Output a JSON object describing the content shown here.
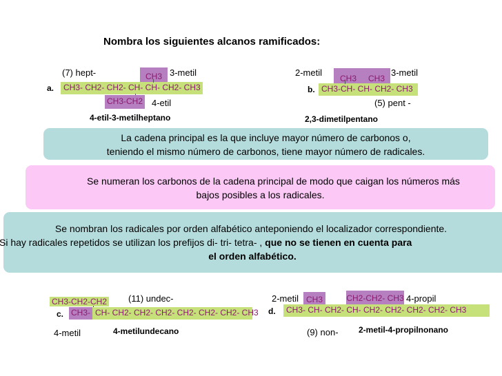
{
  "title": "Nombra los siguientes alcanos ramificados:",
  "ex_a": {
    "letter": "a.",
    "top_left": "(7) hept-",
    "sub_top": "CH3",
    "top_right": "3-metil",
    "chain": "CH3- CH2- CH2- CH- CH- CH2- CH3",
    "sub_bottom": "CH3-CH2",
    "bottom_right": "4-etil",
    "answer": "4-etil-3-metilheptano"
  },
  "ex_b": {
    "letter": "b.",
    "top_left": "2-metil",
    "sub_left": "CH3",
    "sub_right": "CH3",
    "top_right": "3-metil",
    "chain": "CH3-CH- CH- CH2- CH3",
    "bottom_right": "(5) pent -",
    "answer": "2,3-dimetilpentano"
  },
  "rule1": {
    "line1": "La cadena principal es la que incluye mayor número de carbonos o,",
    "line2": "teniendo el mismo número de carbonos, tiene mayor número de radicales.",
    "bg": "#b5dcdc"
  },
  "rule2": {
    "line1": "Se numeran los carbonos de la cadena principal de modo que caigan los números más",
    "line2": "bajos posibles a los radicales.",
    "bg": "#fcc8f6"
  },
  "rule3": {
    "line1": "Se nombran los radicales por orden alfabético anteponiendo el localizador correspondiente.",
    "line2_plain": "Si hay radicales repetidos se utilizan los prefijos di- tri- tetra- , ",
    "line2_bold": "que no se tienen en cuenta para",
    "line3_bold": "el orden alfabético.",
    "bg": "#b5dcdc"
  },
  "ex_c": {
    "letter": "c.",
    "sub_top": "CH3-CH2-CH2",
    "top_right": "(11) undec-",
    "chain_first": "CH3-",
    "chain_rest": "CH- CH2- CH2- CH2- CH2- CH2- CH2- CH3",
    "bottom_left": "4-metil",
    "answer": "4-metilundecano"
  },
  "ex_d": {
    "letter": "d.",
    "top_left": "2-metil",
    "sub_left": "CH3",
    "sub_right": "CH2-CH2- CH3",
    "top_right": "4-propil",
    "chain": "CH3- CH- CH2- CH- CH2- CH2- CH2- CH2- CH3",
    "bottom_mid": "(9) non-",
    "answer": "2-metil-4-propilnonano"
  },
  "colors": {
    "green": "#c6e07a",
    "purple": "#b57fc0",
    "teal": "#b5dcdc",
    "pink": "#fcc8f6"
  }
}
